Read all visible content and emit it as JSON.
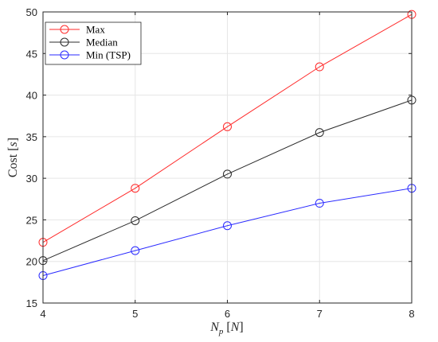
{
  "chart_data": {
    "type": "line",
    "x": [
      4,
      5,
      6,
      7,
      8
    ],
    "xlim": [
      4,
      8
    ],
    "ylim": [
      15,
      50
    ],
    "xticks": [
      4,
      5,
      6,
      7,
      8
    ],
    "yticks": [
      15,
      20,
      25,
      30,
      35,
      40,
      45,
      50
    ],
    "xlabel": "N_p [N]",
    "ylabel": "Cost [s]",
    "grid": true,
    "legend_position": "top-left",
    "marker": "circle",
    "series": [
      {
        "name": "Max",
        "color": "#ff2a2a",
        "values": [
          22.3,
          28.8,
          36.2,
          43.4,
          49.7
        ]
      },
      {
        "name": "Median",
        "color": "#2b2b2b",
        "values": [
          20.1,
          24.9,
          30.5,
          35.5,
          39.4
        ]
      },
      {
        "name": "Min (TSP)",
        "color": "#2a2aff",
        "values": [
          18.3,
          21.3,
          24.3,
          27.0,
          28.8
        ]
      }
    ]
  }
}
